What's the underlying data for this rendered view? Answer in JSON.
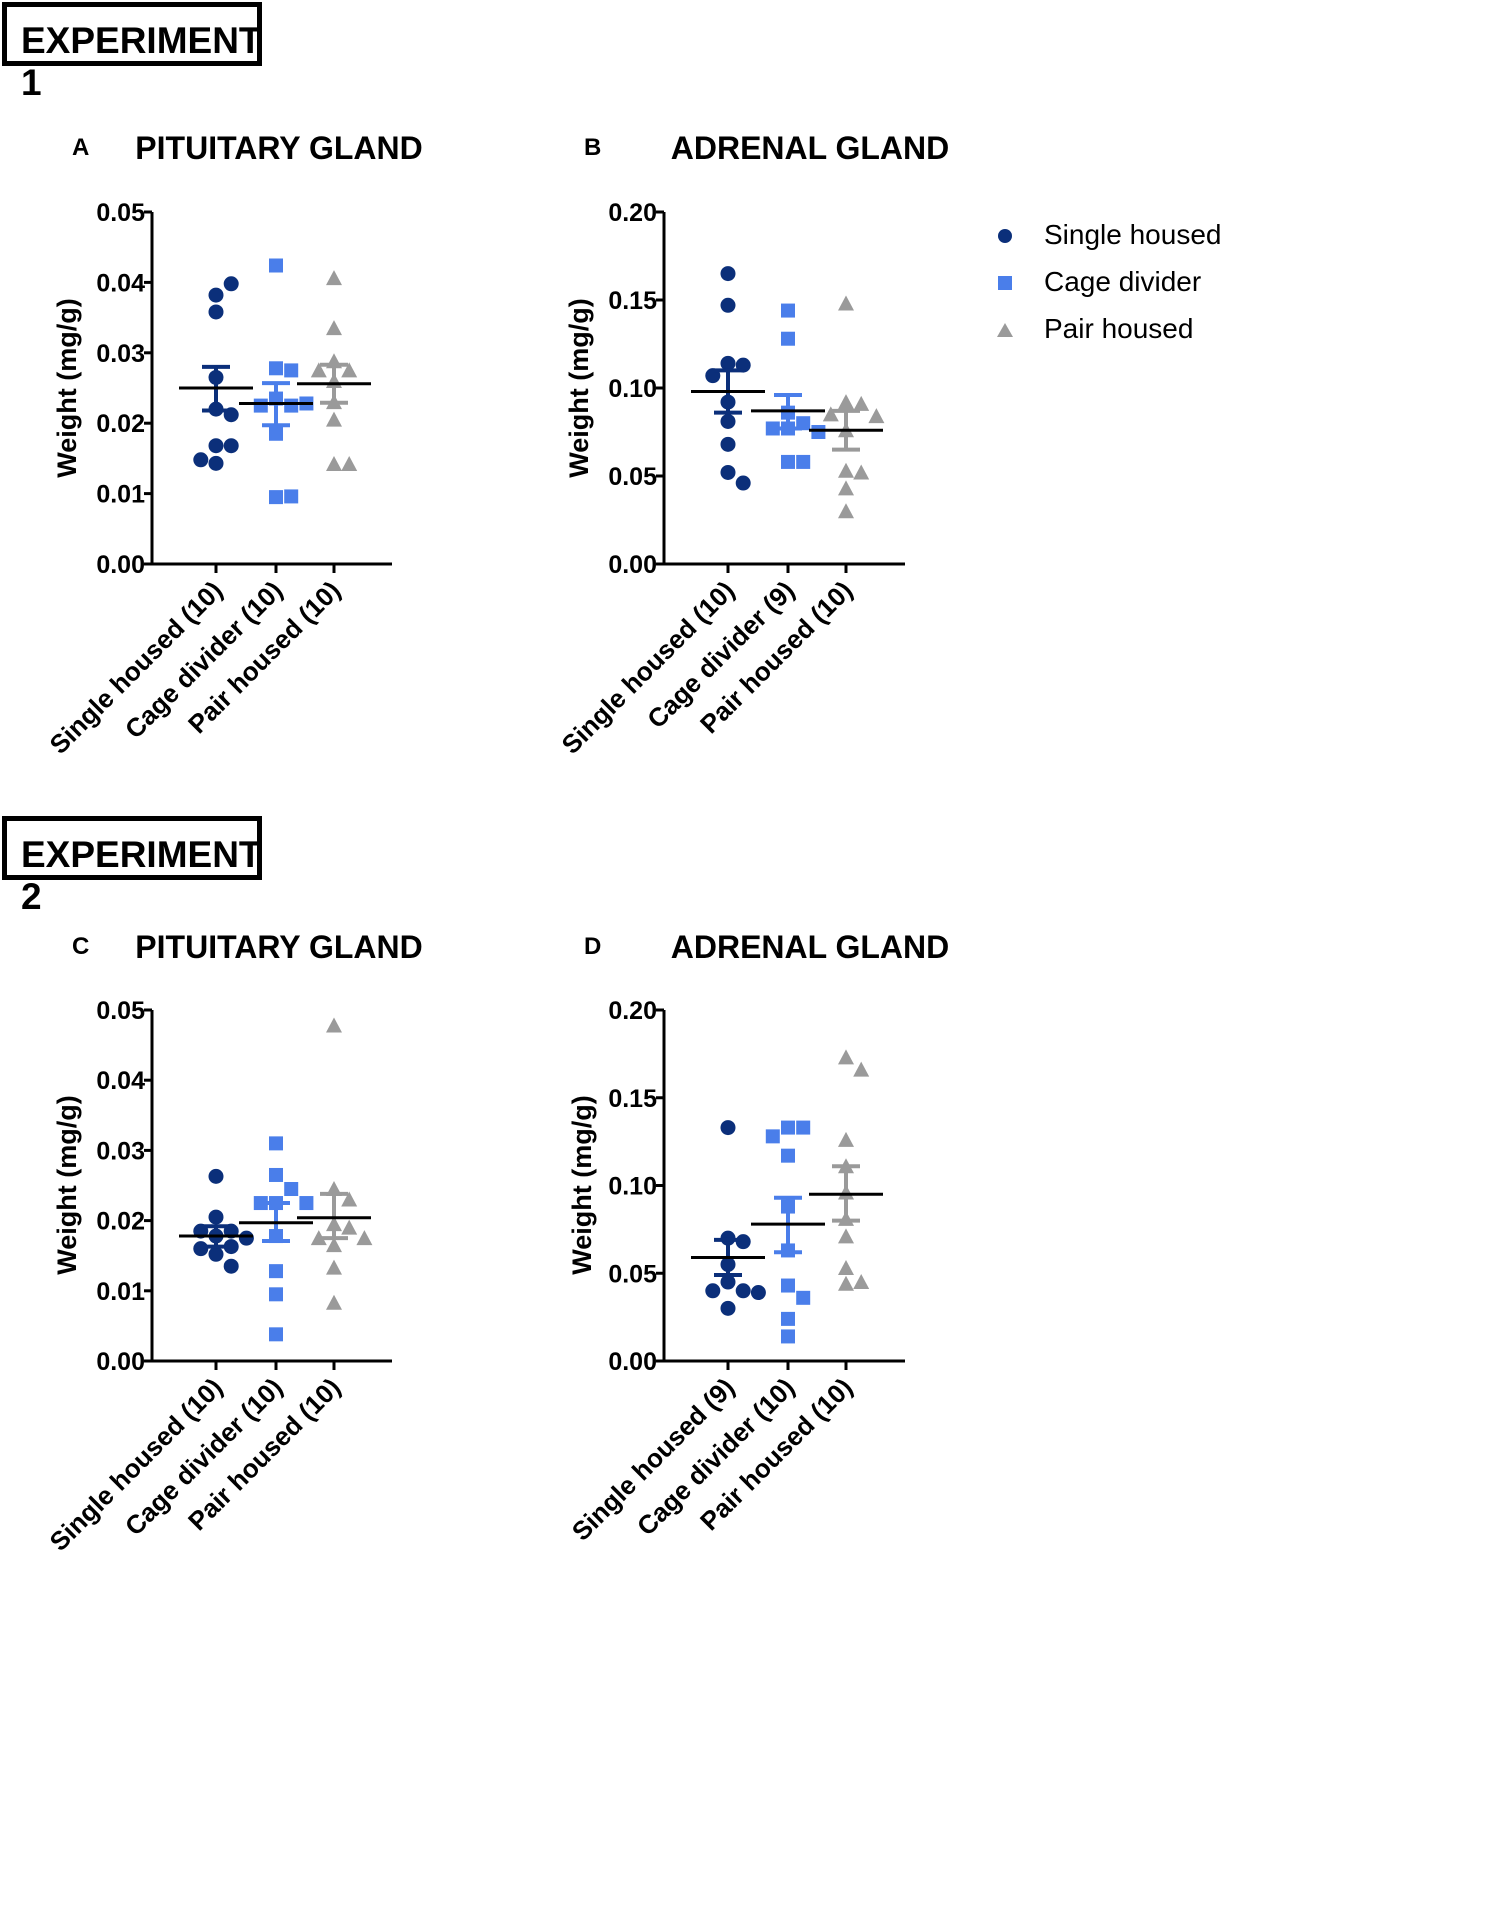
{
  "experiments": [
    {
      "label": "EXPERIMENT 1"
    },
    {
      "label": "EXPERIMENT 2"
    }
  ],
  "legend": {
    "entries": [
      {
        "label": "Single housed",
        "marker": "circle",
        "color": "#0b2f7a"
      },
      {
        "label": "Cage divider",
        "marker": "square",
        "color": "#4a7eea"
      },
      {
        "label": "Pair housed",
        "marker": "triangle",
        "color": "#9a9a9a"
      }
    ]
  },
  "chart_data": [
    {
      "panel": "A",
      "title": "PITUITARY GLAND",
      "type": "scatter",
      "ylabel": "Weight (mg/g)",
      "ylim": [
        0,
        0.05
      ],
      "yticks": [
        0.0,
        0.01,
        0.02,
        0.03,
        0.04,
        0.05
      ],
      "ytick_labels": [
        "0.00",
        "0.01",
        "0.02",
        "0.03",
        "0.04",
        "0.05"
      ],
      "categories": [
        "Single housed (10)",
        "Cage divider (10)",
        "Pair housed (10)"
      ],
      "series": [
        {
          "name": "Single housed",
          "mean": 0.025,
          "sem_low": 0.0218,
          "sem_high": 0.028,
          "values": [
            0.0382,
            0.0398,
            0.0358,
            0.0265,
            0.022,
            0.0212,
            0.0168,
            0.0168,
            0.0143,
            0.0148
          ]
        },
        {
          "name": "Cage divider",
          "mean": 0.0228,
          "sem_low": 0.0197,
          "sem_high": 0.0257,
          "values": [
            0.0424,
            0.0278,
            0.0275,
            0.0235,
            0.0225,
            0.0225,
            0.0228,
            0.0185,
            0.0095,
            0.0096
          ]
        },
        {
          "name": "Pair housed",
          "mean": 0.0256,
          "sem_low": 0.0229,
          "sem_high": 0.0283,
          "values": [
            0.0406,
            0.0335,
            0.0288,
            0.0275,
            0.0275,
            0.026,
            0.023,
            0.0205,
            0.0142,
            0.0142
          ]
        }
      ]
    },
    {
      "panel": "B",
      "title": "ADRENAL GLAND",
      "type": "scatter",
      "ylabel": "Weight (mg/g)",
      "ylim": [
        0,
        0.2
      ],
      "yticks": [
        0.0,
        0.05,
        0.1,
        0.15,
        0.2
      ],
      "ytick_labels": [
        "0.00",
        "0.05",
        "0.10",
        "0.15",
        "0.20"
      ],
      "categories": [
        "Single housed (10)",
        "Cage divider (9)",
        "Pair housed (10)"
      ],
      "series": [
        {
          "name": "Single housed",
          "mean": 0.098,
          "sem_low": 0.086,
          "sem_high": 0.11,
          "values": [
            0.165,
            0.147,
            0.114,
            0.113,
            0.107,
            0.092,
            0.081,
            0.068,
            0.052,
            0.046
          ]
        },
        {
          "name": "Cage divider",
          "mean": 0.087,
          "sem_low": 0.077,
          "sem_high": 0.096,
          "values": [
            0.144,
            0.128,
            0.086,
            0.08,
            0.077,
            0.077,
            0.075,
            0.058,
            0.058
          ]
        },
        {
          "name": "Pair housed",
          "mean": 0.076,
          "sem_low": 0.065,
          "sem_high": 0.087,
          "values": [
            0.148,
            0.092,
            0.091,
            0.085,
            0.084,
            0.076,
            0.053,
            0.052,
            0.043,
            0.03
          ]
        }
      ]
    },
    {
      "panel": "C",
      "title": "PITUITARY GLAND",
      "type": "scatter",
      "ylabel": "Weight (mg/g)",
      "ylim": [
        0,
        0.05
      ],
      "yticks": [
        0.0,
        0.01,
        0.02,
        0.03,
        0.04,
        0.05
      ],
      "ytick_labels": [
        "0.00",
        "0.01",
        "0.02",
        "0.03",
        "0.04",
        "0.05"
      ],
      "categories": [
        "Single housed (10)",
        "Cage divider (10)",
        "Pair housed (10)"
      ],
      "series": [
        {
          "name": "Single housed",
          "mean": 0.0178,
          "sem_low": 0.0163,
          "sem_high": 0.0192,
          "values": [
            0.0263,
            0.0205,
            0.0185,
            0.0185,
            0.0178,
            0.0175,
            0.0163,
            0.016,
            0.0152,
            0.0135
          ]
        },
        {
          "name": "Cage divider",
          "mean": 0.0197,
          "sem_low": 0.0171,
          "sem_high": 0.0225,
          "values": [
            0.031,
            0.0265,
            0.0245,
            0.0225,
            0.0225,
            0.0225,
            0.0178,
            0.0128,
            0.0095,
            0.0038
          ]
        },
        {
          "name": "Pair housed",
          "mean": 0.0204,
          "sem_low": 0.0175,
          "sem_high": 0.0238,
          "values": [
            0.0478,
            0.0245,
            0.023,
            0.0195,
            0.019,
            0.0175,
            0.0175,
            0.0165,
            0.0133,
            0.0083
          ]
        }
      ]
    },
    {
      "panel": "D",
      "title": "ADRENAL GLAND",
      "type": "scatter",
      "ylabel": "Weight (mg/g)",
      "ylim": [
        0,
        0.2
      ],
      "yticks": [
        0.0,
        0.05,
        0.1,
        0.15,
        0.2
      ],
      "ytick_labels": [
        "0.00",
        "0.05",
        "0.10",
        "0.15",
        "0.20"
      ],
      "categories": [
        "Single housed (9)",
        "Cage divider (10)",
        "Pair housed (10)"
      ],
      "series": [
        {
          "name": "Single housed",
          "mean": 0.059,
          "sem_low": 0.049,
          "sem_high": 0.069,
          "values": [
            0.133,
            0.07,
            0.068,
            0.055,
            0.045,
            0.04,
            0.04,
            0.039,
            0.03
          ]
        },
        {
          "name": "Cage divider",
          "mean": 0.078,
          "sem_low": 0.062,
          "sem_high": 0.093,
          "values": [
            0.133,
            0.133,
            0.128,
            0.117,
            0.088,
            0.063,
            0.043,
            0.036,
            0.024,
            0.014
          ]
        },
        {
          "name": "Pair housed",
          "mean": 0.095,
          "sem_low": 0.08,
          "sem_high": 0.111,
          "values": [
            0.173,
            0.166,
            0.126,
            0.111,
            0.096,
            0.081,
            0.071,
            0.053,
            0.045,
            0.044
          ]
        }
      ]
    }
  ]
}
